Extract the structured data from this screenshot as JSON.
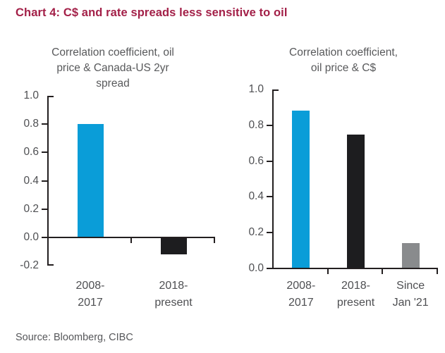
{
  "page": {
    "title": "Chart 4: C$ and rate spreads less sensitive to oil",
    "source": "Source: Bloomberg, CIBC"
  },
  "colors": {
    "title_accent": "#a32048",
    "chart_text": "#58595b",
    "tick_text": "#4e4f52",
    "axis": "#231f20",
    "bar_blue": "#0a9dd8",
    "bar_black": "#1d1d1f",
    "bar_gray": "#898b8d"
  },
  "chart_data": [
    {
      "type": "bar",
      "title": "Correlation coefficient, oil\nprice & Canada-US 2yr\nspread",
      "categories": [
        "2008-\n2017",
        "2018-\npresent"
      ],
      "values": [
        0.8,
        -0.12
      ],
      "bar_colors": [
        "#0a9dd8",
        "#1d1d1f"
      ],
      "ylim": [
        -0.2,
        1.0
      ],
      "ytick_values": [
        1.0,
        0.8,
        0.6,
        0.4,
        0.2,
        0.0,
        -0.2
      ],
      "ytick_labels": [
        "1.0",
        "0.8",
        "0.6",
        "0.4",
        "0.2",
        "0.0",
        "-0.2"
      ],
      "grid": false,
      "legend": false,
      "xlabel": "",
      "ylabel": ""
    },
    {
      "type": "bar",
      "title": "Correlation coefficient,\noil price & C$",
      "categories": [
        "2008-\n2017",
        "2018-\npresent",
        "Since\nJan '21"
      ],
      "values": [
        0.88,
        0.75,
        0.14
      ],
      "bar_colors": [
        "#0a9dd8",
        "#1d1d1f",
        "#898b8d"
      ],
      "ylim": [
        0.0,
        1.0
      ],
      "ytick_values": [
        1.0,
        0.8,
        0.6,
        0.4,
        0.2,
        0.0
      ],
      "ytick_labels": [
        "1.0",
        "0.8",
        "0.6",
        "0.4",
        "0.2",
        "0.0"
      ],
      "grid": false,
      "legend": false,
      "xlabel": "",
      "ylabel": ""
    }
  ]
}
